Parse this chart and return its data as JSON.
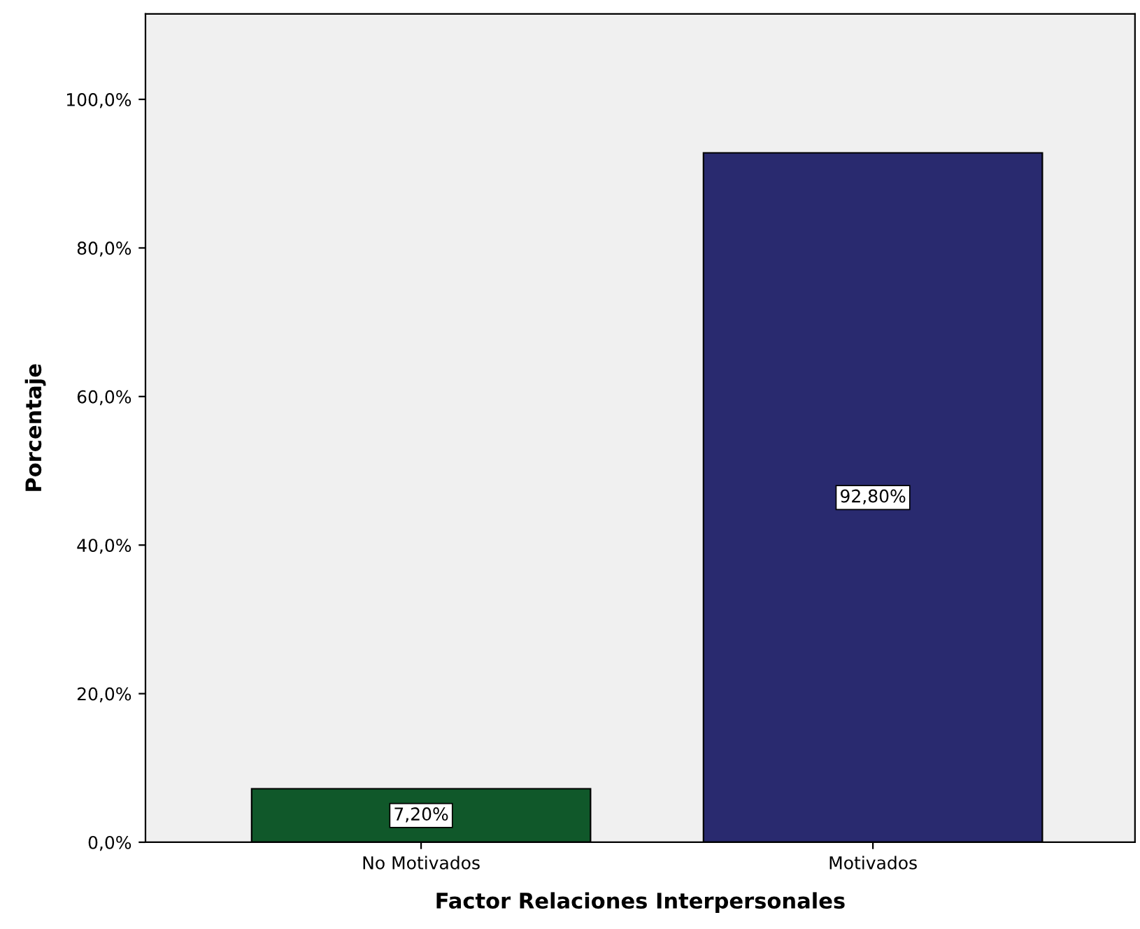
{
  "chart_data": {
    "type": "bar",
    "xlabel": "Factor Relaciones Interpersonales",
    "ylabel": "Porcentaje",
    "categories": [
      "No Motivados",
      "Motivados"
    ],
    "values": [
      7.2,
      92.8
    ],
    "colors": [
      "#10582a",
      "#292a6f"
    ],
    "value_labels": [
      "7,20%",
      "92,80%"
    ],
    "ylim": [
      0,
      111.5
    ],
    "yticks": [
      {
        "value": 0,
        "label": "0,0%"
      },
      {
        "value": 20,
        "label": "20,0%"
      },
      {
        "value": 40,
        "label": "40,0%"
      },
      {
        "value": 60,
        "label": "60,0%"
      },
      {
        "value": 80,
        "label": "80,0%"
      },
      {
        "value": 100,
        "label": "100,0%"
      }
    ],
    "grid": false
  }
}
